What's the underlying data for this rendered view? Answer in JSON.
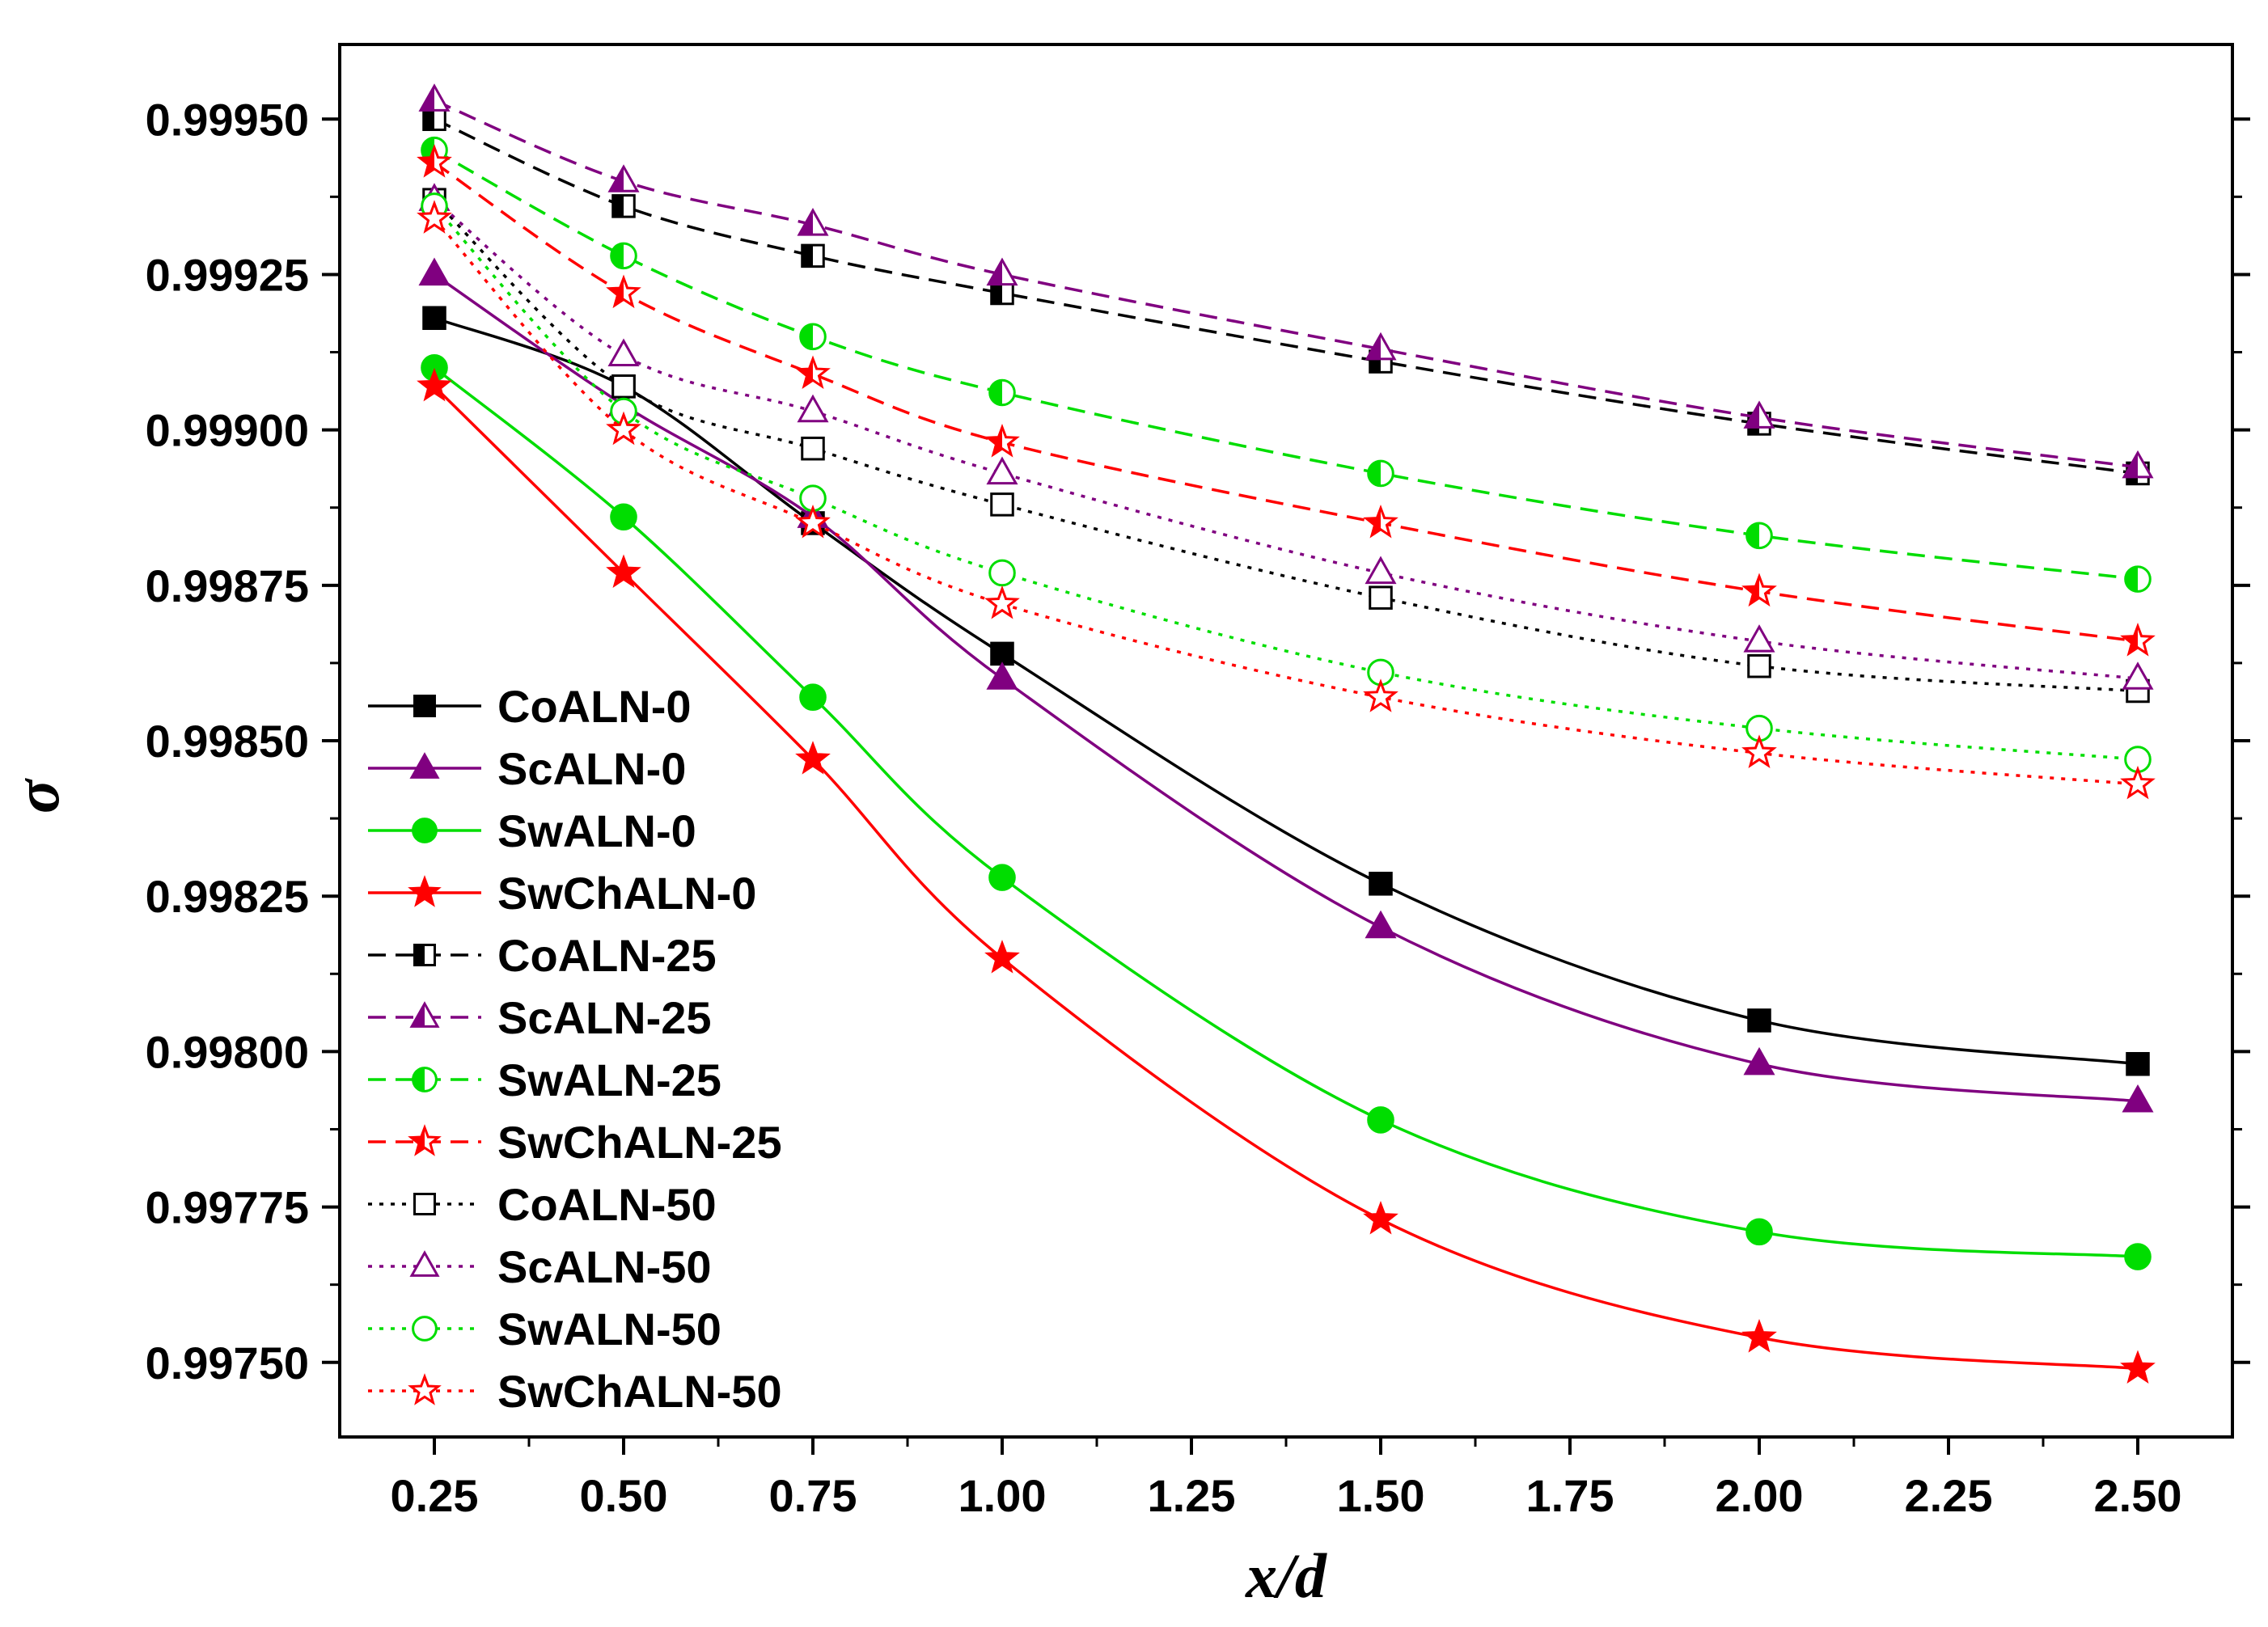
{
  "chart_data": {
    "type": "line",
    "title": "",
    "xlabel": "x/d",
    "ylabel": "σ",
    "xlim": [
      0.125,
      2.625
    ],
    "ylim": [
      0.99738,
      0.99962
    ],
    "x_ticks": [
      0.25,
      0.5,
      0.75,
      1.0,
      1.25,
      1.5,
      1.75,
      2.0,
      2.25,
      2.5
    ],
    "x_tick_labels": [
      "0.25",
      "0.50",
      "0.75",
      "1.00",
      "1.25",
      "1.50",
      "1.75",
      "2.00",
      "2.25",
      "2.50"
    ],
    "y_ticks": [
      0.9975,
      0.99775,
      0.998,
      0.99825,
      0.9985,
      0.99875,
      0.999,
      0.99925,
      0.9995
    ],
    "y_tick_labels": [
      "0.99750",
      "0.99775",
      "0.99800",
      "0.99825",
      "0.99850",
      "0.99875",
      "0.99900",
      "0.99925",
      "0.99950"
    ],
    "grid": false,
    "legend_position": "left-bottom",
    "x": [
      0.25,
      0.5,
      0.75,
      1.0,
      1.5,
      2.0,
      2.5
    ],
    "series": [
      {
        "name": "CoALN-0",
        "color": "#000000",
        "dash": "solid",
        "marker": "square",
        "fill": "full",
        "values": [
          0.99918,
          0.99907,
          0.99885,
          0.99864,
          0.99827,
          0.99805,
          0.99798
        ]
      },
      {
        "name": "ScALN-0",
        "color": "#800080",
        "dash": "solid",
        "marker": "triangle",
        "fill": "full",
        "values": [
          0.99925,
          0.99904,
          0.99886,
          0.9986,
          0.9982,
          0.99798,
          0.99792
        ]
      },
      {
        "name": "SwALN-0",
        "color": "#00dd00",
        "dash": "solid",
        "marker": "circle",
        "fill": "full",
        "values": [
          0.9991,
          0.99886,
          0.99857,
          0.99828,
          0.99789,
          0.99771,
          0.99767
        ]
      },
      {
        "name": "SwChALN-0",
        "color": "#ff0000",
        "dash": "solid",
        "marker": "star",
        "fill": "full",
        "values": [
          0.99907,
          0.99877,
          0.99847,
          0.99815,
          0.99773,
          0.99754,
          0.99749
        ]
      },
      {
        "name": "CoALN-25",
        "color": "#000000",
        "dash": "dashed",
        "marker": "square",
        "fill": "half",
        "values": [
          0.9995,
          0.99936,
          0.99928,
          0.99922,
          0.99911,
          0.99901,
          0.99893
        ]
      },
      {
        "name": "ScALN-25",
        "color": "#800080",
        "dash": "dashed",
        "marker": "triangle",
        "fill": "half",
        "values": [
          0.99953,
          0.9994,
          0.99933,
          0.99925,
          0.99913,
          0.99902,
          0.99894
        ]
      },
      {
        "name": "SwALN-25",
        "color": "#00dd00",
        "dash": "dashed",
        "marker": "circle",
        "fill": "half",
        "values": [
          0.99945,
          0.99928,
          0.99915,
          0.99906,
          0.99893,
          0.99883,
          0.99876
        ]
      },
      {
        "name": "SwChALN-25",
        "color": "#ff0000",
        "dash": "dashed",
        "marker": "star",
        "fill": "half",
        "values": [
          0.99943,
          0.99922,
          0.99909,
          0.99898,
          0.99885,
          0.99874,
          0.99866
        ]
      },
      {
        "name": "CoALN-50",
        "color": "#000000",
        "dash": "dotted",
        "marker": "square",
        "fill": "open",
        "values": [
          0.99937,
          0.99907,
          0.99897,
          0.99888,
          0.99873,
          0.99862,
          0.99858
        ]
      },
      {
        "name": "ScALN-50",
        "color": "#800080",
        "dash": "dotted",
        "marker": "triangle",
        "fill": "open",
        "values": [
          0.99937,
          0.99912,
          0.99903,
          0.99893,
          0.99877,
          0.99866,
          0.9986
        ]
      },
      {
        "name": "SwALN-50",
        "color": "#00dd00",
        "dash": "dotted",
        "marker": "circle",
        "fill": "open",
        "values": [
          0.99936,
          0.99903,
          0.99889,
          0.99877,
          0.99861,
          0.99852,
          0.99847
        ]
      },
      {
        "name": "SwChALN-50",
        "color": "#ff0000",
        "dash": "dotted",
        "marker": "star",
        "fill": "open",
        "values": [
          0.99934,
          0.999,
          0.99885,
          0.99872,
          0.99857,
          0.99848,
          0.99843
        ]
      }
    ]
  }
}
